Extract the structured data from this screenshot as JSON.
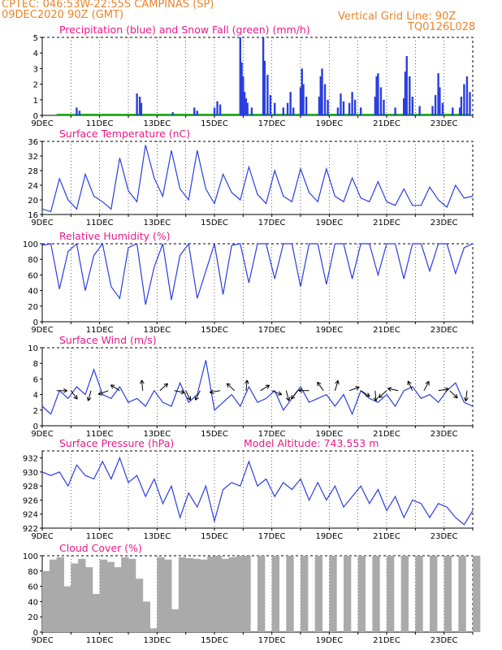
{
  "header": {
    "station": "CPTEC:   046:53W-22:55S   CAMPINAS (SP)",
    "run": "09DEC2020 90Z (GMT)",
    "grid_note": "Vertical Grid Line: 90Z",
    "code": "TQ0126L028"
  },
  "colors": {
    "header": "#e8852a",
    "title": "#e8198b",
    "line": "#2a3fe0",
    "bar": "#2a3fe0",
    "snow": "#22aa22",
    "cloud": "#aaaaaa"
  },
  "x_ticks": [
    "9DEC",
    "11DEC",
    "13DEC",
    "15DEC",
    "17DEC",
    "19DEC",
    "21DEC",
    "23DEC"
  ],
  "chart_data": [
    {
      "id": "precip",
      "type": "bar",
      "title": "Precipitation (blue) and Snow Fall (green) (mm/h)",
      "ylim": [
        0,
        5
      ],
      "yticks": [
        0,
        1,
        2,
        3,
        4,
        5
      ],
      "x_unit": "days since 9DEC 00Z",
      "series": [
        {
          "name": "Precipitation",
          "values": [
            [
              1.2,
              0.5
            ],
            [
              1.3,
              0.3
            ],
            [
              3.3,
              1.4
            ],
            [
              3.4,
              1.2
            ],
            [
              3.45,
              0.8
            ],
            [
              4.55,
              0.2
            ],
            [
              5.3,
              0.5
            ],
            [
              5.4,
              0.3
            ],
            [
              6.0,
              0.5
            ],
            [
              6.1,
              0.9
            ],
            [
              6.2,
              0.7
            ],
            [
              6.9,
              5
            ],
            [
              6.95,
              3.4
            ],
            [
              7.0,
              2.5
            ],
            [
              7.05,
              1.5
            ],
            [
              7.1,
              1.1
            ],
            [
              7.15,
              0.8
            ],
            [
              7.3,
              0.5
            ],
            [
              7.7,
              5
            ],
            [
              7.75,
              3.5
            ],
            [
              7.85,
              2.6
            ],
            [
              7.95,
              1.3
            ],
            [
              8.1,
              0.8
            ],
            [
              8.4,
              0.5
            ],
            [
              8.55,
              0.8
            ],
            [
              8.65,
              1.5
            ],
            [
              8.75,
              0.5
            ],
            [
              9.0,
              1.8
            ],
            [
              9.05,
              3.0
            ],
            [
              9.1,
              2.0
            ],
            [
              9.2,
              1.2
            ],
            [
              9.65,
              1.2
            ],
            [
              9.7,
              2.5
            ],
            [
              9.75,
              3.0
            ],
            [
              9.85,
              2.0
            ],
            [
              9.95,
              1.0
            ],
            [
              10.3,
              0.5
            ],
            [
              10.4,
              1.4
            ],
            [
              10.5,
              0.9
            ],
            [
              10.7,
              0.8
            ],
            [
              10.8,
              1.5
            ],
            [
              10.9,
              1.0
            ],
            [
              11.1,
              0.5
            ],
            [
              11.6,
              1.2
            ],
            [
              11.65,
              2.5
            ],
            [
              11.7,
              2.7
            ],
            [
              11.8,
              1.8
            ],
            [
              11.9,
              1.0
            ],
            [
              12.3,
              0.5
            ],
            [
              12.6,
              1.1
            ],
            [
              12.65,
              2.8
            ],
            [
              12.7,
              3.8
            ],
            [
              12.8,
              2.5
            ],
            [
              12.9,
              1.2
            ],
            [
              13.15,
              0.6
            ],
            [
              13.6,
              0.6
            ],
            [
              13.7,
              1.3
            ],
            [
              13.8,
              2.7
            ],
            [
              13.85,
              1.8
            ],
            [
              13.95,
              0.8
            ],
            [
              14.3,
              0.5
            ],
            [
              14.55,
              0.5
            ],
            [
              14.6,
              1.2
            ],
            [
              14.7,
              2.0
            ],
            [
              14.8,
              2.5
            ],
            [
              14.9,
              1.5
            ]
          ]
        },
        {
          "name": "Snow Fall",
          "values": [
            [
              0.5,
              0
            ],
            [
              14.9,
              0
            ]
          ]
        }
      ]
    },
    {
      "id": "temp",
      "type": "line",
      "title": "Surface Temperature (nC)",
      "ylim": [
        16,
        36
      ],
      "yticks": [
        16,
        20,
        24,
        28,
        32,
        36
      ],
      "x": [
        0,
        0.3,
        0.6,
        0.9,
        1.2,
        1.5,
        1.8,
        2.1,
        2.4,
        2.7,
        3.0,
        3.3,
        3.6,
        3.9,
        4.2,
        4.5,
        4.8,
        5.1,
        5.4,
        5.7,
        6.0,
        6.3,
        6.6,
        6.9,
        7.2,
        7.5,
        7.8,
        8.1,
        8.4,
        8.7,
        9.0,
        9.3,
        9.6,
        9.9,
        10.2,
        10.5,
        10.8,
        11.1,
        11.4,
        11.7,
        12.0,
        12.3,
        12.6,
        12.9,
        13.2,
        13.5,
        13.8,
        14.1,
        14.4,
        14.7,
        15.0
      ],
      "values": [
        17.5,
        16.8,
        25.8,
        20,
        17.5,
        27,
        21,
        19.5,
        17.5,
        31.5,
        22.5,
        19.5,
        35,
        26,
        21,
        33.5,
        23,
        20,
        33.5,
        23,
        19,
        27,
        22,
        20,
        29,
        21.5,
        19,
        28,
        21,
        19.5,
        28.5,
        22,
        19.5,
        28.5,
        21,
        19.5,
        26,
        20.5,
        19.5,
        25,
        19.5,
        18.5,
        23,
        18.5,
        18.5,
        23.5,
        20,
        18,
        24,
        20.5,
        21
      ]
    },
    {
      "id": "rh",
      "type": "line",
      "title": "Relative Humidity (%)",
      "ylim": [
        0,
        100
      ],
      "yticks": [
        0,
        20,
        40,
        60,
        80,
        100
      ],
      "x": [
        0,
        0.3,
        0.6,
        0.9,
        1.2,
        1.5,
        1.8,
        2.1,
        2.4,
        2.7,
        3.0,
        3.3,
        3.6,
        3.9,
        4.2,
        4.5,
        4.8,
        5.1,
        5.4,
        5.7,
        6.0,
        6.3,
        6.6,
        6.9,
        7.2,
        7.5,
        7.8,
        8.1,
        8.4,
        8.7,
        9.0,
        9.3,
        9.6,
        9.9,
        10.2,
        10.5,
        10.8,
        11.1,
        11.4,
        11.7,
        12.0,
        12.3,
        12.6,
        12.9,
        13.2,
        13.5,
        13.8,
        14.1,
        14.4,
        14.7,
        15.0
      ],
      "values": [
        98,
        100,
        42,
        90,
        100,
        40,
        85,
        100,
        45,
        30,
        95,
        100,
        22,
        70,
        100,
        28,
        85,
        100,
        30,
        65,
        100,
        35,
        98,
        100,
        50,
        100,
        100,
        55,
        100,
        100,
        45,
        100,
        100,
        48,
        100,
        100,
        55,
        100,
        100,
        60,
        100,
        100,
        55,
        100,
        100,
        65,
        100,
        100,
        62,
        95,
        100
      ]
    },
    {
      "id": "wind",
      "type": "line",
      "title": "Surface Wind (m/s)",
      "ylim": [
        0,
        10
      ],
      "yticks": [
        0,
        2,
        4,
        6,
        8,
        10
      ],
      "x": [
        0,
        0.3,
        0.6,
        0.9,
        1.2,
        1.5,
        1.8,
        2.1,
        2.4,
        2.7,
        3.0,
        3.3,
        3.6,
        3.9,
        4.2,
        4.5,
        4.8,
        5.1,
        5.4,
        5.7,
        6.0,
        6.3,
        6.6,
        6.9,
        7.2,
        7.5,
        7.8,
        8.1,
        8.4,
        8.7,
        9.0,
        9.3,
        9.6,
        9.9,
        10.2,
        10.5,
        10.8,
        11.1,
        11.4,
        11.7,
        12.0,
        12.3,
        12.6,
        12.9,
        13.2,
        13.5,
        13.8,
        14.1,
        14.4,
        14.7,
        15.0
      ],
      "values": [
        2.5,
        1.5,
        4.5,
        3.5,
        5,
        4,
        7.2,
        4,
        3.5,
        5,
        3,
        3.5,
        2.5,
        4.5,
        3,
        2.5,
        5.5,
        3,
        4,
        8.4,
        2,
        3,
        4,
        2.5,
        5,
        3,
        3.5,
        4.5,
        2,
        3.5,
        5,
        3,
        3.5,
        4,
        2.5,
        4,
        1.5,
        4.5,
        3.5,
        3,
        4,
        2.5,
        4.5,
        5,
        3.5,
        4,
        3,
        4.5,
        5.5,
        3,
        2.5
      ],
      "arrows_x": [
        0.5,
        1.0,
        1.7,
        2.3,
        2.7,
        3.5,
        4.1,
        4.6,
        5.0,
        5.5,
        6.2,
        6.7,
        7.1,
        7.6,
        8.0,
        8.5,
        8.9,
        9.3,
        9.8,
        10.2,
        10.7,
        11.1,
        11.6,
        12.0,
        12.4,
        12.9,
        13.3,
        13.8,
        14.2,
        14.8
      ]
    },
    {
      "id": "pres",
      "type": "line",
      "title": "Surface Pressure (hPa)",
      "annotation": "Model Altitude: 743.553  m",
      "ylim": [
        922,
        933
      ],
      "yticks": [
        922,
        924,
        926,
        928,
        930,
        932
      ],
      "x": [
        0,
        0.3,
        0.6,
        0.9,
        1.2,
        1.5,
        1.8,
        2.1,
        2.4,
        2.7,
        3.0,
        3.3,
        3.6,
        3.9,
        4.2,
        4.5,
        4.8,
        5.1,
        5.4,
        5.7,
        6.0,
        6.3,
        6.6,
        6.9,
        7.2,
        7.5,
        7.8,
        8.1,
        8.4,
        8.7,
        9.0,
        9.3,
        9.6,
        9.9,
        10.2,
        10.5,
        10.8,
        11.1,
        11.4,
        11.7,
        12.0,
        12.3,
        12.6,
        12.9,
        13.2,
        13.5,
        13.8,
        14.1,
        14.4,
        14.7,
        15.0
      ],
      "values": [
        930,
        929.5,
        930,
        928,
        931,
        929.5,
        929,
        931.5,
        929,
        932,
        928.5,
        929.5,
        926.5,
        929,
        925.5,
        928,
        923.5,
        927,
        925,
        928,
        923,
        927.5,
        928.5,
        928,
        931.5,
        928,
        929,
        926.5,
        928.5,
        927.5,
        929,
        926,
        928.5,
        926,
        928,
        925,
        926.5,
        928,
        925.5,
        927.5,
        924.5,
        926.5,
        923.5,
        926,
        925.5,
        923.5,
        925.5,
        925,
        923.5,
        922.5,
        924.5
      ]
    },
    {
      "id": "cloud",
      "type": "bar",
      "title": "Cloud Cover (%)",
      "ylim": [
        0,
        100
      ],
      "yticks": [
        0,
        20,
        40,
        60,
        80,
        100
      ],
      "x": [
        0,
        0.25,
        0.5,
        0.75,
        1.0,
        1.25,
        1.5,
        1.75,
        2.0,
        2.25,
        2.5,
        2.75,
        3.0,
        3.25,
        3.5,
        3.75,
        4.0,
        4.25,
        4.5,
        4.75,
        5.0,
        5.25,
        5.5,
        5.75,
        6.0,
        6.25,
        6.5,
        6.75,
        7.0,
        7.5,
        8.0,
        8.5,
        9.0,
        9.5,
        10.0,
        10.5,
        11.0,
        11.5,
        12.0,
        12.5,
        13.0,
        13.5,
        14.0,
        14.5,
        15.0
      ],
      "values": [
        80,
        95,
        98,
        60,
        90,
        96,
        85,
        50,
        95,
        92,
        85,
        98,
        96,
        70,
        40,
        5,
        98,
        95,
        30,
        98,
        97,
        96,
        95,
        99,
        100,
        96,
        98,
        100,
        100,
        100,
        100,
        100,
        100,
        100,
        100,
        100,
        100,
        100,
        100,
        100,
        100,
        100,
        100,
        100,
        100
      ]
    }
  ]
}
